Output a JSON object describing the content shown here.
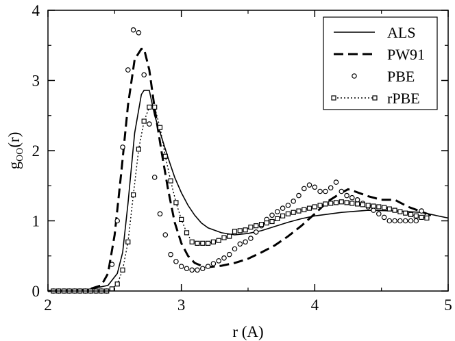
{
  "chart_data": {
    "type": "line",
    "title": "",
    "xlabel": "r (A)",
    "ylabel": "g",
    "ylabel_subscript": "OO",
    "ylabel_suffix": "(r)",
    "xlim": [
      2,
      5
    ],
    "ylim": [
      0,
      4
    ],
    "xticks": [
      "2",
      "3",
      "4",
      "5"
    ],
    "yticks": [
      "0",
      "1",
      "2",
      "3",
      "4"
    ],
    "legend_position": "top-right",
    "series": [
      {
        "name": "ALS",
        "style": "solid",
        "x": [
          2.0,
          2.3,
          2.45,
          2.52,
          2.56,
          2.6,
          2.65,
          2.7,
          2.72,
          2.76,
          2.8,
          2.85,
          2.9,
          2.95,
          3.0,
          3.05,
          3.1,
          3.15,
          3.2,
          3.3,
          3.4,
          3.5,
          3.6,
          3.7,
          3.8,
          3.9,
          4.0,
          4.2,
          4.4,
          4.6,
          4.8,
          5.0
        ],
        "values": [
          0.0,
          0.02,
          0.08,
          0.25,
          0.55,
          1.25,
          2.25,
          2.8,
          2.86,
          2.86,
          2.5,
          2.2,
          1.9,
          1.62,
          1.4,
          1.22,
          1.08,
          0.97,
          0.9,
          0.83,
          0.8,
          0.82,
          0.86,
          0.92,
          0.98,
          1.03,
          1.07,
          1.12,
          1.15,
          1.14,
          1.12,
          1.04
        ]
      },
      {
        "name": "PW91",
        "style": "dashed",
        "x": [
          2.0,
          2.3,
          2.4,
          2.45,
          2.5,
          2.55,
          2.6,
          2.65,
          2.7,
          2.72,
          2.76,
          2.8,
          2.85,
          2.9,
          2.95,
          3.0,
          3.05,
          3.1,
          3.15,
          3.2,
          3.25,
          3.3,
          3.4,
          3.5,
          3.6,
          3.7,
          3.8,
          3.9,
          4.0,
          4.1,
          4.2,
          4.25,
          4.3,
          4.4,
          4.5,
          4.6,
          4.7,
          4.8,
          4.9
        ],
        "values": [
          0.0,
          0.02,
          0.08,
          0.25,
          0.8,
          1.7,
          2.65,
          3.3,
          3.45,
          3.45,
          3.15,
          2.6,
          2.0,
          1.45,
          0.98,
          0.68,
          0.5,
          0.4,
          0.36,
          0.34,
          0.35,
          0.36,
          0.4,
          0.46,
          0.55,
          0.65,
          0.78,
          0.93,
          1.1,
          1.28,
          1.4,
          1.45,
          1.42,
          1.35,
          1.3,
          1.3,
          1.2,
          1.13,
          1.06
        ]
      },
      {
        "name": "PBE",
        "style": "circles",
        "x": [
          2.04,
          2.08,
          2.12,
          2.16,
          2.2,
          2.24,
          2.28,
          2.32,
          2.36,
          2.4,
          2.44,
          2.48,
          2.52,
          2.56,
          2.6,
          2.64,
          2.68,
          2.72,
          2.76,
          2.8,
          2.84,
          2.88,
          2.92,
          2.96,
          3.0,
          3.04,
          3.08,
          3.12,
          3.16,
          3.2,
          3.24,
          3.28,
          3.32,
          3.36,
          3.4,
          3.44,
          3.48,
          3.52,
          3.56,
          3.6,
          3.64,
          3.68,
          3.72,
          3.76,
          3.8,
          3.84,
          3.88,
          3.92,
          3.96,
          4.0,
          4.04,
          4.08,
          4.12,
          4.16,
          4.2,
          4.24,
          4.28,
          4.32,
          4.36,
          4.4,
          4.44,
          4.48,
          4.52,
          4.56,
          4.6,
          4.64,
          4.68,
          4.72,
          4.76,
          4.8,
          4.84
        ],
        "values": [
          0.0,
          0.0,
          0.0,
          0.0,
          0.0,
          0.0,
          0.0,
          0.0,
          0.0,
          0.0,
          0.0,
          0.38,
          1.0,
          2.05,
          3.15,
          3.72,
          3.68,
          3.08,
          2.38,
          1.62,
          1.1,
          0.8,
          0.52,
          0.42,
          0.35,
          0.32,
          0.3,
          0.3,
          0.32,
          0.35,
          0.39,
          0.43,
          0.47,
          0.52,
          0.6,
          0.67,
          0.7,
          0.75,
          0.84,
          0.93,
          1.02,
          1.08,
          1.13,
          1.18,
          1.22,
          1.28,
          1.36,
          1.46,
          1.51,
          1.48,
          1.42,
          1.42,
          1.47,
          1.55,
          1.42,
          1.36,
          1.33,
          1.3,
          1.25,
          1.2,
          1.15,
          1.1,
          1.05,
          1.0,
          1.0,
          1.0,
          1.0,
          1.0,
          1.0,
          1.14,
          1.07
        ]
      },
      {
        "name": "rPBE",
        "style": "dotted-squares",
        "x": [
          2.04,
          2.08,
          2.12,
          2.16,
          2.2,
          2.24,
          2.28,
          2.32,
          2.36,
          2.4,
          2.44,
          2.48,
          2.52,
          2.56,
          2.6,
          2.64,
          2.68,
          2.72,
          2.76,
          2.8,
          2.84,
          2.88,
          2.92,
          2.96,
          3.0,
          3.04,
          3.08,
          3.12,
          3.16,
          3.2,
          3.24,
          3.28,
          3.32,
          3.36,
          3.4,
          3.44,
          3.48,
          3.52,
          3.56,
          3.6,
          3.64,
          3.68,
          3.72,
          3.76,
          3.8,
          3.84,
          3.88,
          3.92,
          3.96,
          4.0,
          4.04,
          4.08,
          4.12,
          4.16,
          4.2,
          4.24,
          4.28,
          4.32,
          4.36,
          4.4,
          4.44,
          4.48,
          4.52,
          4.56,
          4.6,
          4.64,
          4.68,
          4.72,
          4.76,
          4.8,
          4.84
        ],
        "values": [
          0.0,
          0.0,
          0.0,
          0.0,
          0.0,
          0.0,
          0.0,
          0.0,
          0.0,
          0.0,
          0.0,
          0.03,
          0.1,
          0.3,
          0.7,
          1.37,
          2.02,
          2.42,
          2.62,
          2.62,
          2.33,
          1.92,
          1.57,
          1.26,
          1.02,
          0.83,
          0.7,
          0.68,
          0.68,
          0.68,
          0.7,
          0.72,
          0.76,
          0.78,
          0.85,
          0.86,
          0.87,
          0.91,
          0.93,
          0.95,
          0.97,
          0.99,
          1.03,
          1.07,
          1.1,
          1.12,
          1.14,
          1.16,
          1.18,
          1.2,
          1.22,
          1.24,
          1.25,
          1.26,
          1.27,
          1.26,
          1.25,
          1.24,
          1.23,
          1.22,
          1.21,
          1.2,
          1.19,
          1.17,
          1.15,
          1.13,
          1.11,
          1.09,
          1.07,
          1.05,
          1.04
        ]
      }
    ]
  }
}
